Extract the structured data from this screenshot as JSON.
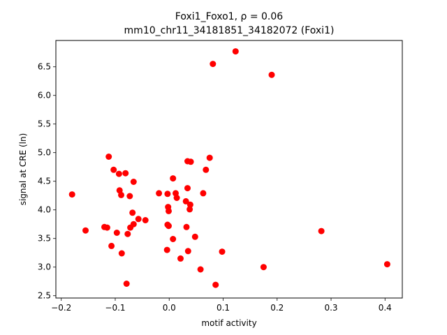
{
  "chart_data": {
    "type": "scatter",
    "title_line1": "Foxi1_Foxo1, ρ = 0.06",
    "title_line2": "mm10_chr11_34181851_34182072 (Foxi1)",
    "xlabel": "motif activity",
    "ylabel": "signal at CRE (ln)",
    "xlim": [
      -0.21,
      0.432
    ],
    "ylim": [
      2.46,
      6.96
    ],
    "xticks": [
      -0.2,
      -0.1,
      0.0,
      0.1,
      0.2,
      0.3,
      0.4
    ],
    "xtick_labels": [
      "−0.2",
      "−0.1",
      "0.0",
      "0.1",
      "0.2",
      "0.3",
      "0.4"
    ],
    "yticks": [
      2.5,
      3.0,
      3.5,
      4.0,
      4.5,
      5.0,
      5.5,
      6.0,
      6.5
    ],
    "ytick_labels": [
      "2.5",
      "3.0",
      "3.5",
      "4.0",
      "4.5",
      "5.0",
      "5.5",
      "6.0",
      "6.5"
    ],
    "grid": false,
    "marker_color": "#ff0000",
    "points": [
      {
        "x": 0.123,
        "y": 6.77
      },
      {
        "x": 0.081,
        "y": 6.55
      },
      {
        "x": 0.19,
        "y": 6.36
      },
      {
        "x": -0.112,
        "y": 4.93
      },
      {
        "x": 0.075,
        "y": 4.91
      },
      {
        "x": 0.034,
        "y": 4.85
      },
      {
        "x": 0.04,
        "y": 4.84
      },
      {
        "x": -0.103,
        "y": 4.7
      },
      {
        "x": 0.068,
        "y": 4.7
      },
      {
        "x": -0.093,
        "y": 4.63
      },
      {
        "x": -0.081,
        "y": 4.64
      },
      {
        "x": 0.007,
        "y": 4.55
      },
      {
        "x": -0.066,
        "y": 4.49
      },
      {
        "x": 0.034,
        "y": 4.38
      },
      {
        "x": -0.092,
        "y": 4.34
      },
      {
        "x": -0.019,
        "y": 4.29
      },
      {
        "x": 0.012,
        "y": 4.29
      },
      {
        "x": 0.063,
        "y": 4.29
      },
      {
        "x": -0.003,
        "y": 4.28
      },
      {
        "x": -0.089,
        "y": 4.26
      },
      {
        "x": -0.073,
        "y": 4.24
      },
      {
        "x": 0.014,
        "y": 4.21
      },
      {
        "x": 0.031,
        "y": 4.15
      },
      {
        "x": 0.039,
        "y": 4.09
      },
      {
        "x": -0.002,
        "y": 4.05
      },
      {
        "x": 0.038,
        "y": 4.01
      },
      {
        "x": -0.001,
        "y": 3.98
      },
      {
        "x": -0.068,
        "y": 3.95
      },
      {
        "x": -0.057,
        "y": 3.84
      },
      {
        "x": -0.044,
        "y": 3.82
      },
      {
        "x": -0.066,
        "y": 3.75
      },
      {
        "x": -0.003,
        "y": 3.74
      },
      {
        "x": -0.001,
        "y": 3.72
      },
      {
        "x": -0.12,
        "y": 3.7
      },
      {
        "x": 0.032,
        "y": 3.7
      },
      {
        "x": -0.115,
        "y": 3.69
      },
      {
        "x": -0.072,
        "y": 3.69
      },
      {
        "x": -0.155,
        "y": 3.64
      },
      {
        "x": -0.097,
        "y": 3.6
      },
      {
        "x": -0.077,
        "y": 3.58
      },
      {
        "x": 0.048,
        "y": 3.53
      },
      {
        "x": 0.007,
        "y": 3.49
      },
      {
        "x": -0.107,
        "y": 3.37
      },
      {
        "x": -0.004,
        "y": 3.3
      },
      {
        "x": 0.035,
        "y": 3.28
      },
      {
        "x": 0.098,
        "y": 3.27
      },
      {
        "x": -0.088,
        "y": 3.24
      },
      {
        "x": 0.021,
        "y": 3.15
      },
      {
        "x": 0.058,
        "y": 2.96
      },
      {
        "x": -0.079,
        "y": 2.71
      },
      {
        "x": 0.086,
        "y": 2.69
      },
      {
        "x": 0.175,
        "y": 3.0
      },
      {
        "x": 0.282,
        "y": 3.63
      },
      {
        "x": 0.404,
        "y": 3.05
      },
      {
        "x": -0.18,
        "y": 4.27
      }
    ]
  }
}
